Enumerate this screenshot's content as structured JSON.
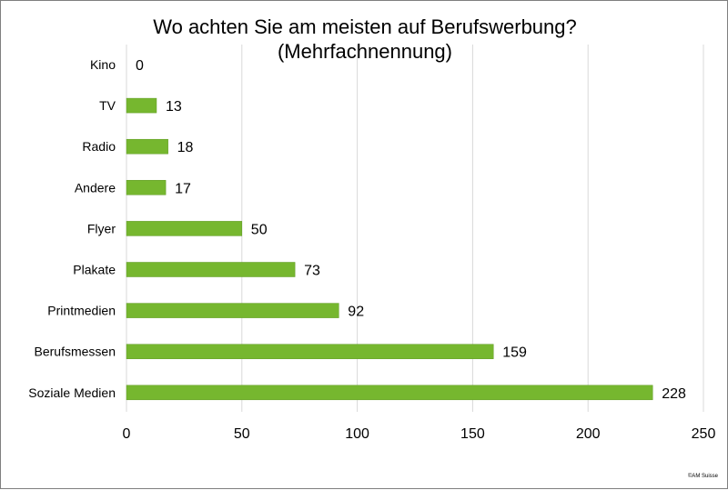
{
  "chart_data": {
    "type": "bar",
    "orientation": "horizontal",
    "title": [
      "Wo achten Sie am meisten auf Berufswerbung?",
      "(Mehrfachnennung)"
    ],
    "categories": [
      "Kino",
      "TV",
      "Radio",
      "Andere",
      "Flyer",
      "Plakate",
      "Printmedien",
      "Berufsmessen",
      "Soziale Medien"
    ],
    "values": [
      0,
      13,
      18,
      17,
      50,
      73,
      92,
      159,
      228
    ],
    "xlim": [
      0,
      250
    ],
    "xticks": [
      0,
      50,
      100,
      150,
      200,
      250
    ],
    "grid": true,
    "legend": "none",
    "bar_color": "#76b72f"
  },
  "copyright": "©AM Suisse"
}
